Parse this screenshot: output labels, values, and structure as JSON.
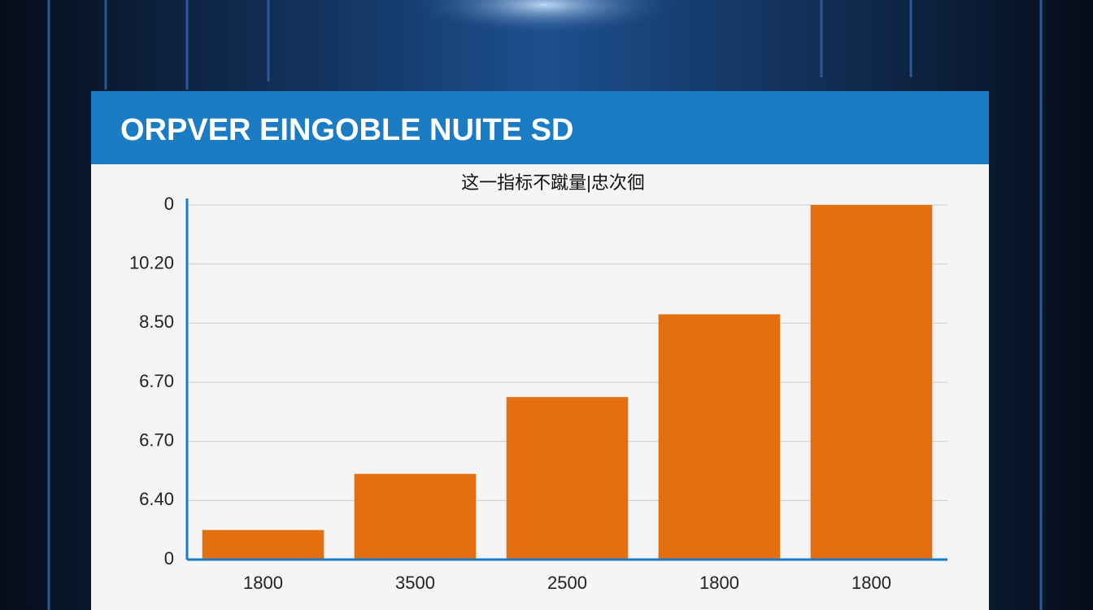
{
  "chart_data": {
    "type": "bar",
    "title": "ORPVER EINGOBLE NUITE SD",
    "subtitle": "这一指标不蹴量|忠次徊",
    "categories": [
      "1800",
      "3500",
      "2500",
      "1800",
      "1800"
    ],
    "values": [
      0.5,
      1.45,
      2.75,
      4.15,
      6.0
    ],
    "color": "#e46f0e",
    "ylim": [
      0,
      6
    ],
    "yticks": [
      {
        "value": 0,
        "label": "0"
      },
      {
        "value": 1,
        "label": "6.40"
      },
      {
        "value": 2,
        "label": "6.70"
      },
      {
        "value": 3,
        "label": "6.70"
      },
      {
        "value": 4,
        "label": "8.50"
      },
      {
        "value": 5,
        "label": "10.20"
      },
      {
        "value": 6,
        "label": "0"
      }
    ],
    "grid": true
  }
}
